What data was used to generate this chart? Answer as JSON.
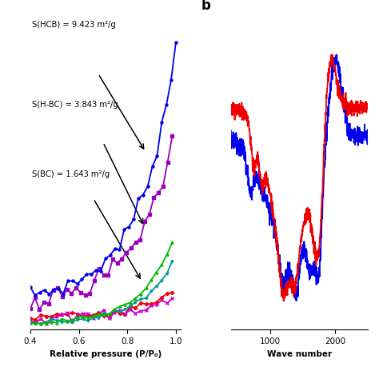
{
  "panel_a": {
    "ann1": "S(HCB) = 9.423 m²/g",
    "ann2": "S(H-BC) = 3.843 m²/g",
    "ann3": "S(BC) = 1.643 m²/g",
    "xlabel": "Relative pressure (P/P₀)",
    "xlim": [
      0.4,
      1.02
    ],
    "xticks": [
      0.4,
      0.6,
      0.8,
      1.0
    ],
    "ylim": [
      0,
      1.0
    ],
    "colors": {
      "blue": "#0000EE",
      "purple": "#9900BB",
      "green": "#00BB00",
      "cyan": "#009999",
      "red": "#EE0000",
      "magenta": "#CC00CC"
    }
  },
  "panel_b": {
    "label": "b",
    "xlabel": "Wave number",
    "xlim": [
      400,
      2500
    ],
    "xticks": [
      1000,
      2000
    ],
    "colors": {
      "blue": "#0000EE",
      "red": "#EE0000"
    }
  }
}
